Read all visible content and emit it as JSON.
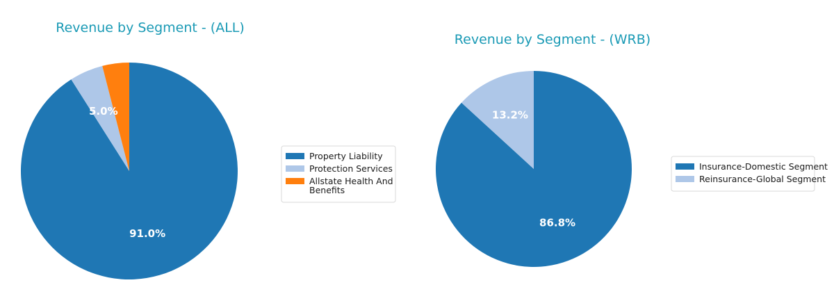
{
  "chart_data": [
    {
      "type": "pie",
      "title": "Revenue by Segment - (ALL)",
      "categories": [
        "Property Liability",
        "Protection Services",
        "Allstate Health And Benefits"
      ],
      "legend_lines": [
        [
          "Property Liability"
        ],
        [
          "Protection Services"
        ],
        [
          "Allstate Health And",
          "Benefits"
        ]
      ],
      "values": [
        91.0,
        5.0,
        4.0
      ],
      "value_labels": [
        "91.0%",
        "5.0%",
        ""
      ],
      "colors": [
        "#1f77b4",
        "#aec7e8",
        "#ff7f0e"
      ],
      "start_angle_deg": 90,
      "direction": "clockwise",
      "legend_position": "right"
    },
    {
      "type": "pie",
      "title": "Revenue by Segment - (WRB)",
      "categories": [
        "Insurance-Domestic Segment",
        "Reinsurance-Global Segment"
      ],
      "legend_lines": [
        [
          "Insurance-Domestic Segment"
        ],
        [
          "Reinsurance-Global Segment"
        ]
      ],
      "values": [
        86.8,
        13.2
      ],
      "value_labels": [
        "86.8%",
        "13.2%"
      ],
      "colors": [
        "#1f77b4",
        "#aec7e8"
      ],
      "start_angle_deg": 90,
      "direction": "clockwise",
      "legend_position": "right"
    }
  ]
}
